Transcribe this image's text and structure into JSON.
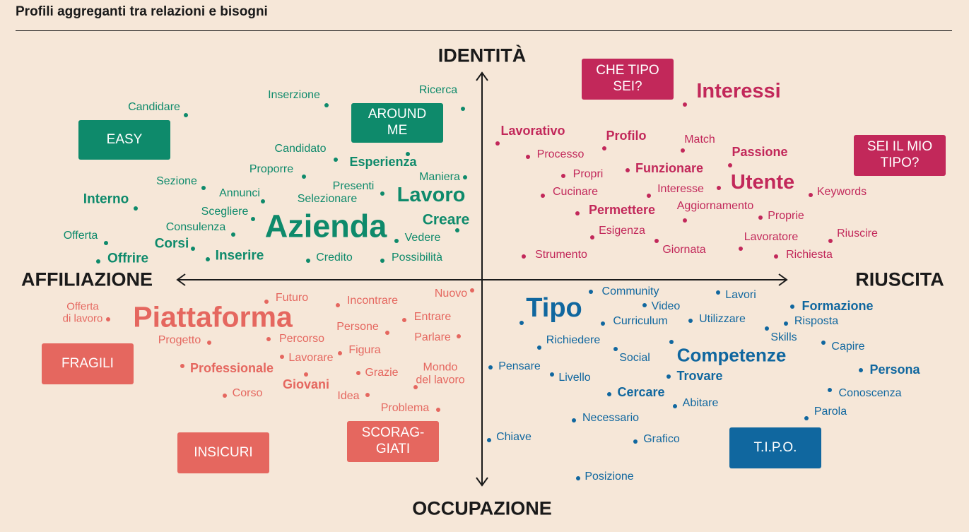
{
  "title": "Profili aggreganti tra relazioni e bisogni",
  "axes": {
    "top": "IDENTITÀ",
    "bottom": "OCCUPAZIONE",
    "left": "AFFILIAZIONE",
    "right": "RIUSCITA"
  },
  "colors": {
    "green": "#0e8a6b",
    "red": "#c2285a",
    "salmon": "#e5675f",
    "blue": "#10679f"
  },
  "quadrants": [
    {
      "id": "tl",
      "color": "#0e8a6b",
      "boxes": [
        "EASY",
        "AROUND ME"
      ],
      "words": [
        "Candidare",
        "Inserzione",
        "Ricerca",
        "Candidato",
        "Esperienza",
        "Proporre",
        "Maniera",
        "Sezione",
        "Annunci",
        "Presenti",
        "Lavoro",
        "Interno",
        "Selezionare",
        "Scegliere",
        "Creare",
        "Azienda",
        "Consulenza",
        "Offerta",
        "Vedere",
        "Corsi",
        "Offrire",
        "Inserire",
        "Credito",
        "Possibilità"
      ]
    },
    {
      "id": "tr",
      "color": "#c2285a",
      "boxes": [
        "CHE TIPO SEI?",
        "SEI IL MIO TIPO?"
      ],
      "words": [
        "Interessi",
        "Lavorativo",
        "Profilo",
        "Match",
        "Processo",
        "Passione",
        "Funzionare",
        "Propri",
        "Utente",
        "Interesse",
        "Cucinare",
        "Keywords",
        "Aggiornamento",
        "Permettere",
        "Proprie",
        "Esigenza",
        "Riuscire",
        "Lavoratore",
        "Giornata",
        "Strumento",
        "Richiesta"
      ]
    },
    {
      "id": "bl",
      "color": "#e5675f",
      "boxes": [
        "FRAGILI",
        "INSICURI",
        "SCORAG-GIATI"
      ],
      "words": [
        "Futuro",
        "Nuovo",
        "Incontrare",
        "Offerta di lavoro",
        "Piattaforma",
        "Entrare",
        "Persone",
        "Percorso",
        "Parlare",
        "Progetto",
        "Figura",
        "Lavorare",
        "Professionale",
        "Mondo del lavoro",
        "Grazie",
        "Giovani",
        "Corso",
        "Idea",
        "Problema"
      ]
    },
    {
      "id": "br",
      "color": "#10679f",
      "boxes": [
        "T.I.P.O."
      ],
      "words": [
        "Community",
        "Lavori",
        "Tipo",
        "Video",
        "Formazione",
        "Utilizzare",
        "Curriculum",
        "Risposta",
        "Skills",
        "Richiedere",
        "Capire",
        "Competenze",
        "Social",
        "Pensare",
        "Persona",
        "Trovare",
        "Livello",
        "Conoscenza",
        "Cercare",
        "Abitare",
        "Parola",
        "Necessario",
        "Chiave",
        "Grafico",
        "Posizione"
      ]
    }
  ]
}
